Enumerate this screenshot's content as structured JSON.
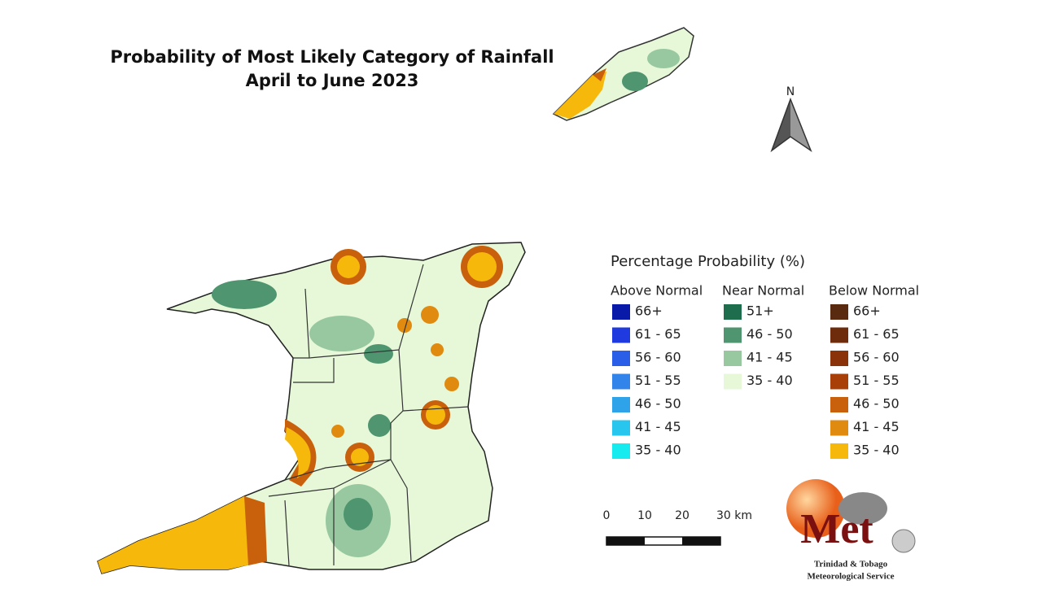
{
  "title": {
    "line1": "Probability of Most Likely Category of Rainfall",
    "line2": "April to June 2023"
  },
  "north_label": "N",
  "legend": {
    "title": "Percentage Probability (%)",
    "columns": [
      {
        "heading": "Above Normal",
        "items": [
          {
            "label": "66+",
            "color": "#0a1aa8"
          },
          {
            "label": "61 - 65",
            "color": "#1f3be0"
          },
          {
            "label": "56 - 60",
            "color": "#2a5ee8"
          },
          {
            "label": "51 - 55",
            "color": "#3384ea"
          },
          {
            "label": "46 - 50",
            "color": "#2ea3ea"
          },
          {
            "label": "41 - 45",
            "color": "#26c6ee"
          },
          {
            "label": "35 - 40",
            "color": "#16ecf0"
          }
        ]
      },
      {
        "heading": "Near Normal",
        "items": [
          {
            "label": "51+",
            "color": "#1e6e4e"
          },
          {
            "label": "46 - 50",
            "color": "#4f9670"
          },
          {
            "label": "41 - 45",
            "color": "#98c8a0"
          },
          {
            "label": "35 - 40",
            "color": "#e6f8d8"
          }
        ]
      },
      {
        "heading": "Below Normal",
        "items": [
          {
            "label": "66+",
            "color": "#5a2a10"
          },
          {
            "label": "61 - 65",
            "color": "#6e2c0c"
          },
          {
            "label": "56 - 60",
            "color": "#8a330a"
          },
          {
            "label": "51 - 55",
            "color": "#a83e08"
          },
          {
            "label": "46 - 50",
            "color": "#c8600c"
          },
          {
            "label": "41 - 45",
            "color": "#e08a10"
          },
          {
            "label": "35 - 40",
            "color": "#f7b80c"
          }
        ]
      }
    ]
  },
  "scale_bar": {
    "labels": [
      "0",
      "10",
      "20",
      "30 km"
    ]
  },
  "logo": {
    "mark": "Met",
    "organization_line1": "Trinidad & Tobago",
    "organization_line2": "Meteorological Service"
  }
}
